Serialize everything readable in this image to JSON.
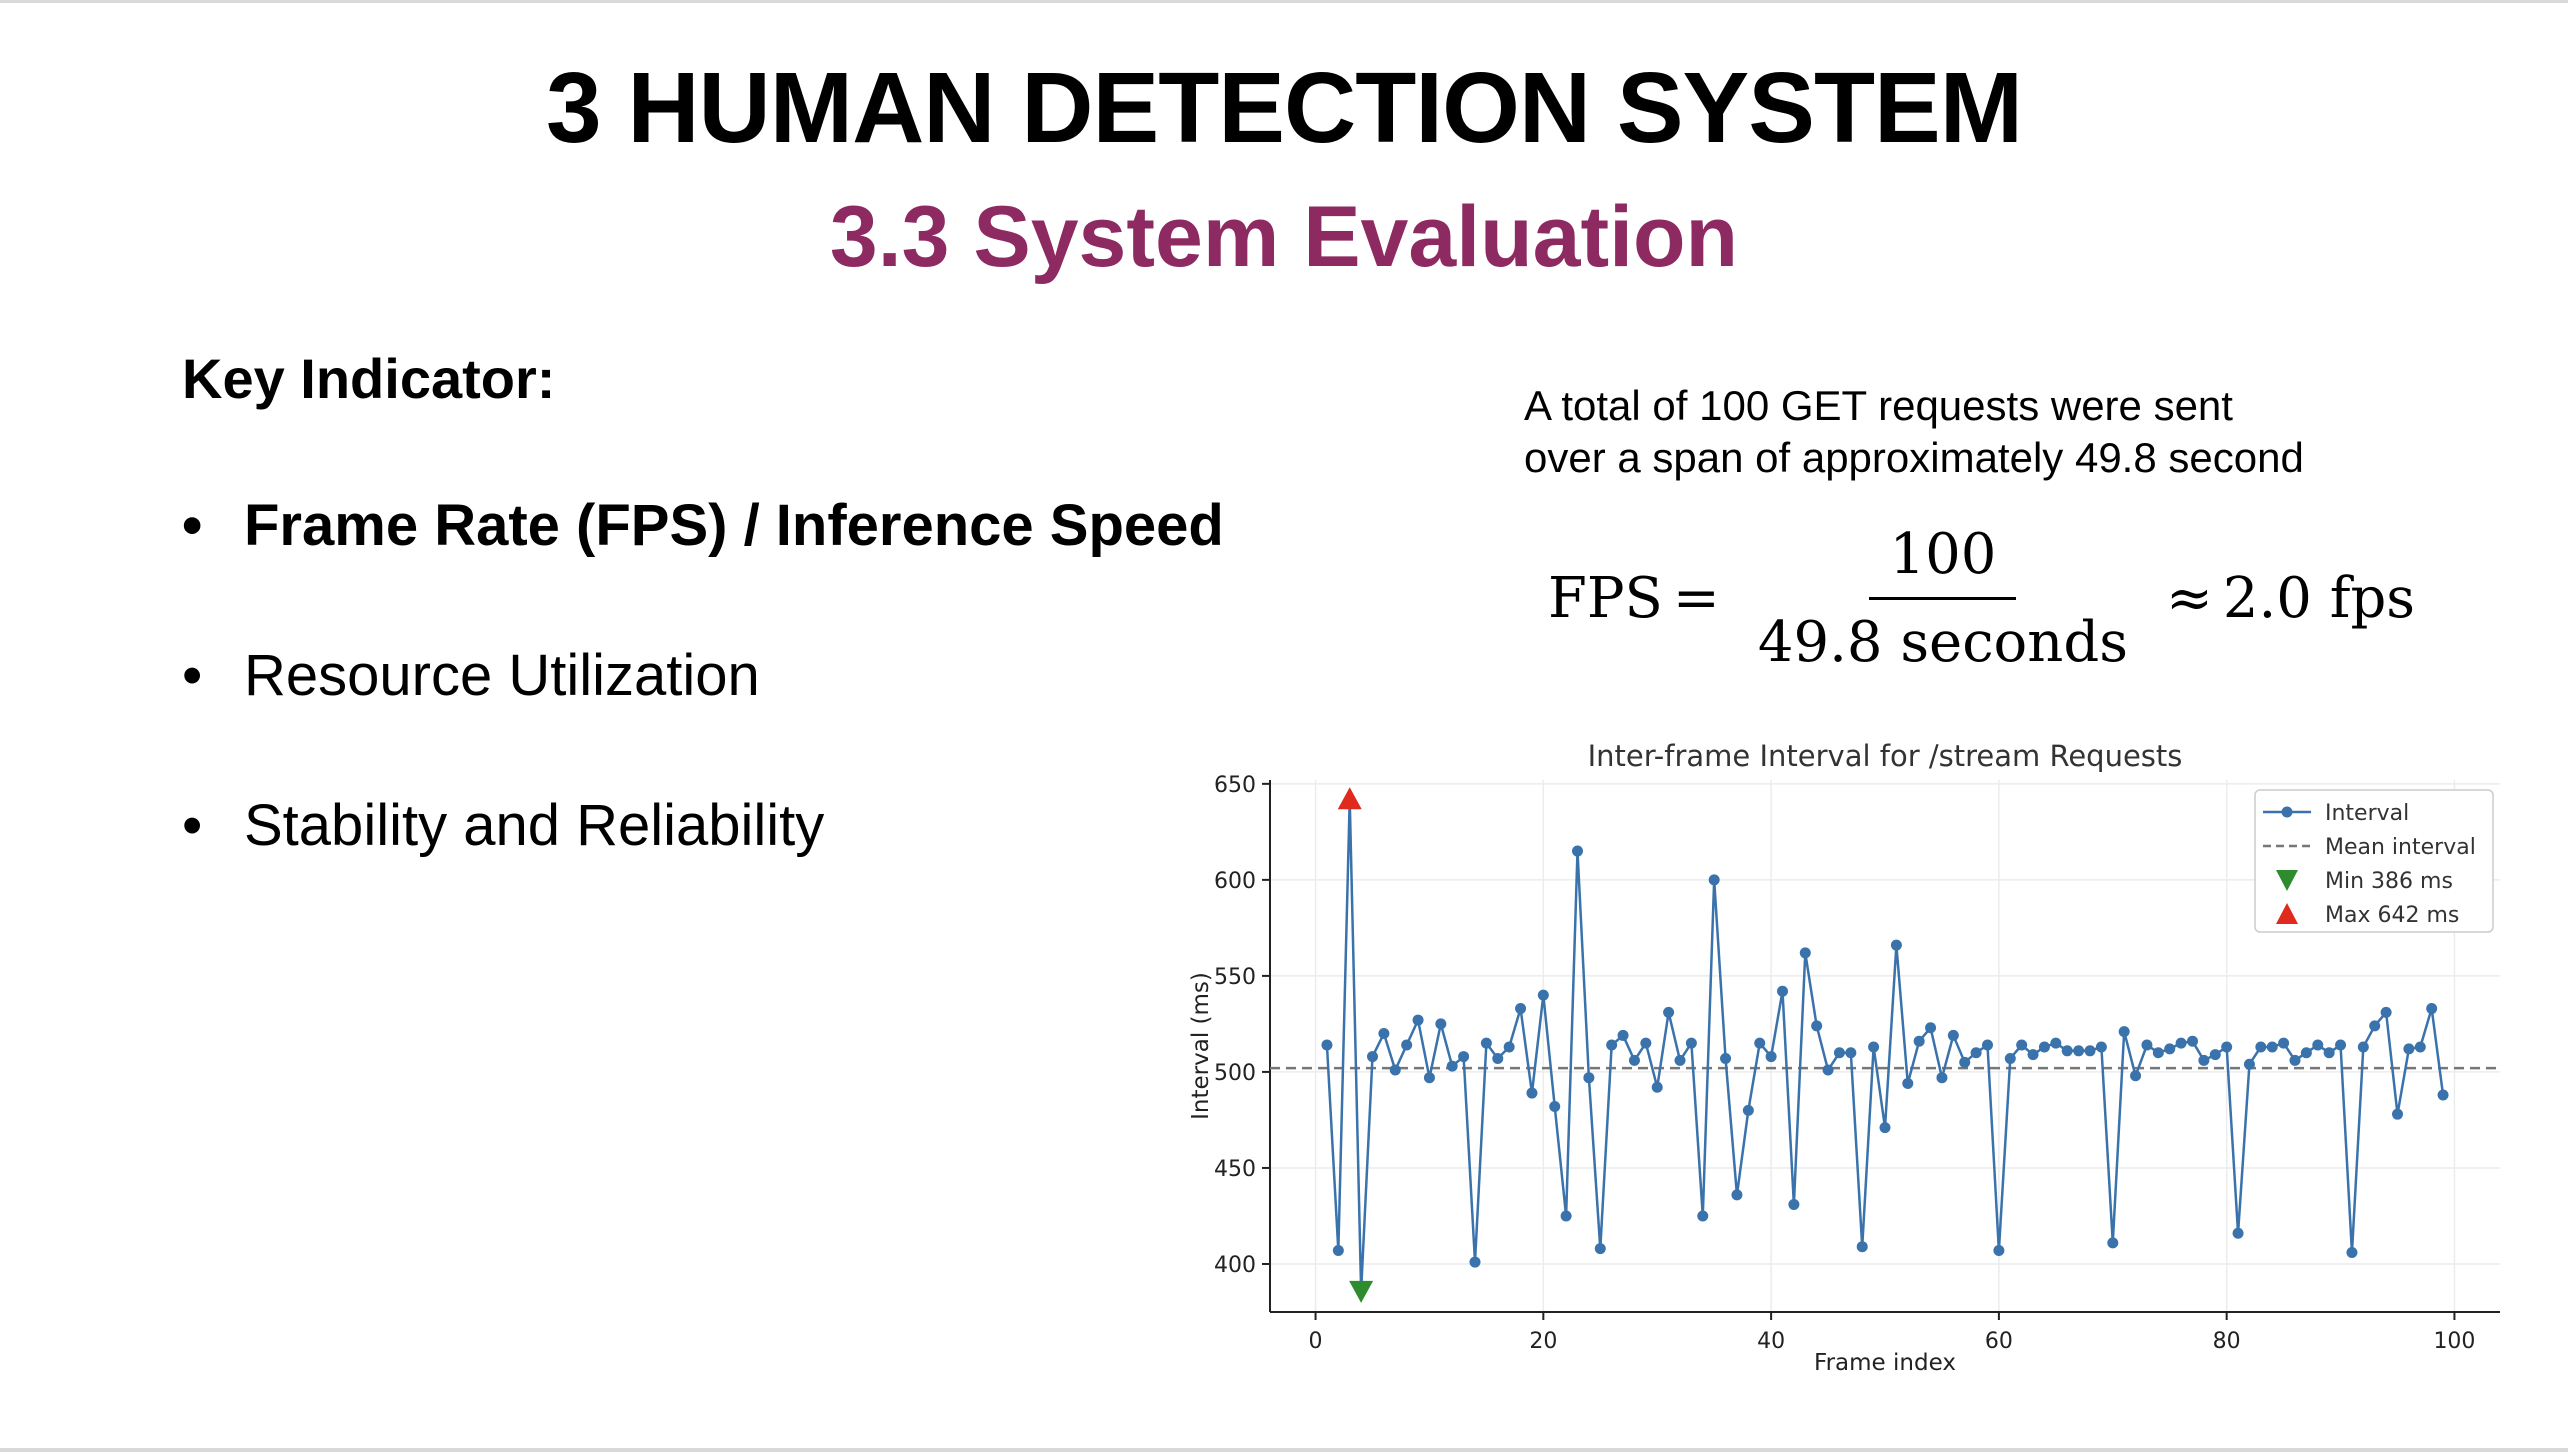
{
  "slide": {
    "title": "3 HUMAN DETECTION SYSTEM",
    "subtitle": "3.3 System Evaluation",
    "key_indicator": "Key Indicator:",
    "bullets": [
      "Frame Rate (FPS) / Inference Speed",
      "Resource Utilization",
      "Stability and Reliability"
    ],
    "note_line1": "A total of 100 GET requests were sent",
    "note_line2": "over a span of approximately 49.8 second",
    "formula": {
      "lhs": "FPS",
      "eq": "=",
      "numerator": "100",
      "denominator": "49.8 seconds",
      "approx": "≈",
      "result": "2.0 fps"
    },
    "colors": {
      "subtitle": "#8e2a62",
      "series": "#3a72ab",
      "min_marker": "#2e8b2e",
      "max_marker": "#e02a1e",
      "mean_line": "#777777"
    }
  },
  "chart_data": {
    "type": "line",
    "title": "Inter-frame Interval for /stream Requests",
    "xlabel": "Frame index",
    "ylabel": "Interval (ms)",
    "xlim": [
      -4,
      104
    ],
    "ylim": [
      375,
      652
    ],
    "xticks": [
      0,
      20,
      40,
      60,
      80,
      100
    ],
    "yticks": [
      400,
      450,
      500,
      550,
      600,
      650
    ],
    "grid": true,
    "legend_position": "top-right",
    "series": [
      {
        "name": "Interval",
        "x": [
          1,
          2,
          3,
          4,
          5,
          6,
          7,
          8,
          9,
          10,
          11,
          12,
          13,
          14,
          15,
          16,
          17,
          18,
          19,
          20,
          21,
          22,
          23,
          24,
          25,
          26,
          27,
          28,
          29,
          30,
          31,
          32,
          33,
          34,
          35,
          36,
          37,
          38,
          39,
          40,
          41,
          42,
          43,
          44,
          45,
          46,
          47,
          48,
          49,
          50,
          51,
          52,
          53,
          54,
          55,
          56,
          57,
          58,
          59,
          60,
          61,
          62,
          63,
          64,
          65,
          66,
          67,
          68,
          69,
          70,
          71,
          72,
          73,
          74,
          75,
          76,
          77,
          78,
          79,
          80,
          81,
          82,
          83,
          84,
          85,
          86,
          87,
          88,
          89,
          90,
          91,
          92,
          93,
          94,
          95,
          96,
          97,
          98,
          99
        ],
        "values": [
          514,
          407,
          642,
          386,
          508,
          520,
          501,
          514,
          527,
          497,
          525,
          503,
          508,
          401,
          515,
          507,
          513,
          533,
          489,
          540,
          482,
          425,
          615,
          497,
          408,
          514,
          519,
          506,
          515,
          492,
          531,
          506,
          515,
          425,
          600,
          507,
          436,
          480,
          515,
          508,
          542,
          431,
          562,
          524,
          501,
          510,
          510,
          409,
          513,
          471,
          566,
          494,
          516,
          523,
          497,
          519,
          505,
          510,
          514,
          407,
          507,
          514,
          509,
          513,
          515,
          511,
          511,
          511,
          513,
          411,
          521,
          498,
          514,
          510,
          512,
          515,
          516,
          506,
          509,
          513,
          416,
          504,
          513,
          513,
          515,
          506,
          510,
          514,
          510,
          514,
          406,
          513,
          524,
          531,
          478,
          512,
          513,
          533,
          488
        ]
      }
    ],
    "mean": {
      "name": "Mean interval",
      "value": 502
    },
    "min": {
      "name": "Min 386 ms",
      "x": 4,
      "value": 386
    },
    "max": {
      "name": "Max 642 ms",
      "x": 3,
      "value": 642
    }
  }
}
